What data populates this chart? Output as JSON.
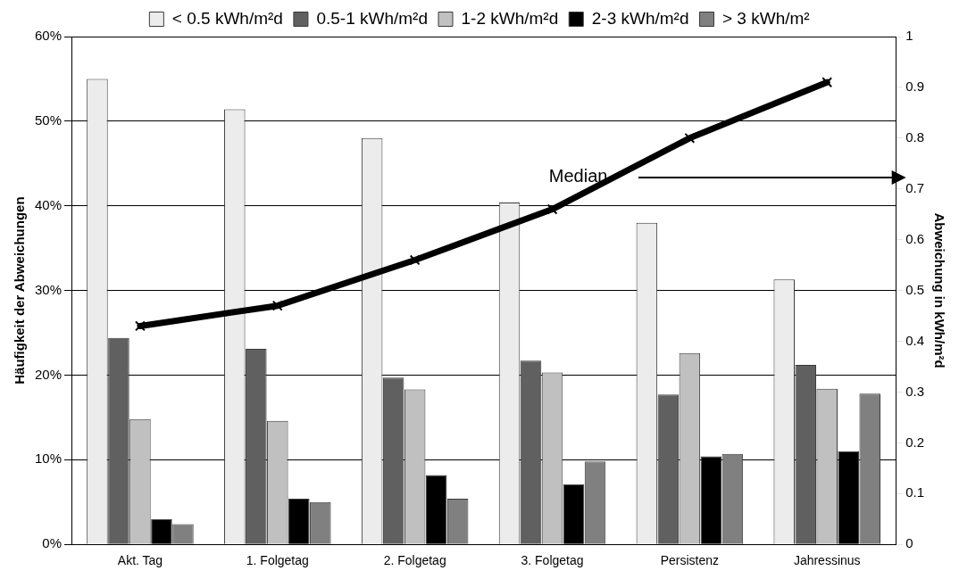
{
  "chart_data": {
    "type": "bar",
    "categories": [
      "Akt. Tag",
      "1. Folgetag",
      "2. Folgetag",
      "3. Folgetag",
      "Persistenz",
      "Jahressinus"
    ],
    "series": [
      {
        "name": "< 0.5 kWh/m²d",
        "color": "#ececec",
        "values": [
          55,
          51.4,
          48,
          40.4,
          38,
          31.3
        ]
      },
      {
        "name": "0.5-1 kWh/m²d",
        "color": "#606060",
        "values": [
          24.4,
          23.1,
          19.7,
          21.7,
          17.7,
          21.2
        ]
      },
      {
        "name": "1-2 kWh/m²d",
        "color": "#c0c0c0",
        "values": [
          14.8,
          14.6,
          18.3,
          20.3,
          22.6,
          18.4
        ]
      },
      {
        "name": "2-3 kWh/m²d",
        "color": "#000000",
        "values": [
          3.0,
          5.4,
          8.2,
          7.1,
          10.4,
          11.0
        ]
      },
      {
        "name": "> 3 kWh/m²",
        "color": "#808080",
        "values": [
          2.4,
          5.0,
          5.4,
          9.8,
          10.7,
          17.8
        ]
      },
      {
        "name": "Median",
        "type": "line",
        "axis": "y2",
        "color": "#000000",
        "values": [
          0.43,
          0.47,
          0.56,
          0.66,
          0.8,
          0.91
        ]
      }
    ],
    "ylabel": "Häufigkeit der Abweichungen",
    "y2label": "Abweichung in kWh/m²d",
    "ylim": [
      0,
      60
    ],
    "yticks": [
      {
        "value": 0,
        "label": "0%"
      },
      {
        "value": 10,
        "label": "10%"
      },
      {
        "value": 20,
        "label": "20%"
      },
      {
        "value": 30,
        "label": "30%"
      },
      {
        "value": 40,
        "label": "40%"
      },
      {
        "value": 50,
        "label": "50%"
      },
      {
        "value": 60,
        "label": "60%"
      }
    ],
    "y2lim": [
      0,
      1
    ],
    "y2ticks": [
      0,
      0.1,
      0.2,
      0.3,
      0.4,
      0.5,
      0.6,
      0.7,
      0.8,
      0.9,
      1
    ],
    "grid": "y",
    "legend": "top",
    "marker": "cross"
  }
}
